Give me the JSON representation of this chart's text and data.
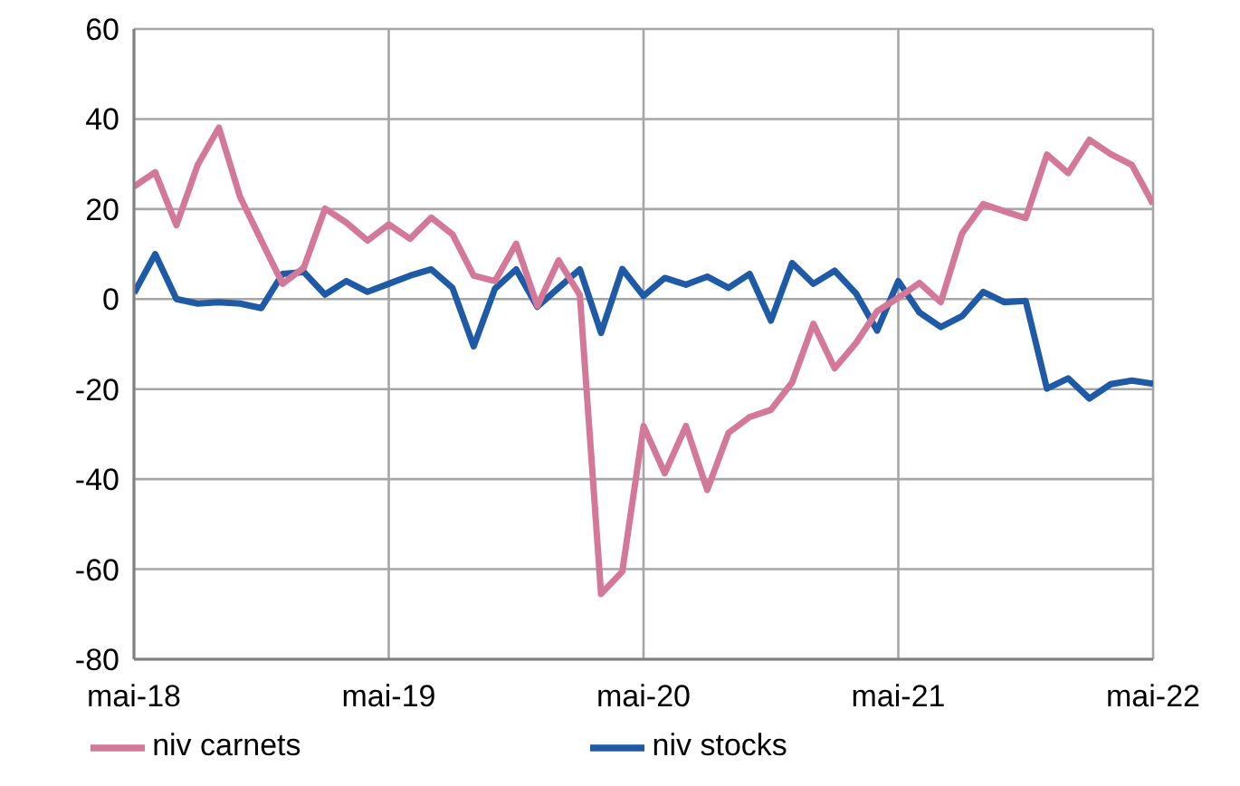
{
  "chart_data": {
    "type": "line",
    "categories": [
      "mai-18",
      null,
      null,
      null,
      null,
      null,
      null,
      null,
      null,
      null,
      null,
      null,
      "mai-19",
      null,
      null,
      null,
      null,
      null,
      null,
      null,
      null,
      null,
      null,
      null,
      "mai-20",
      null,
      null,
      null,
      null,
      null,
      null,
      null,
      null,
      null,
      null,
      null,
      "mai-21",
      null,
      null,
      null,
      null,
      null,
      null,
      null,
      null,
      null,
      null,
      null,
      "mai-22"
    ],
    "series": [
      {
        "name": "niv stocks",
        "color": "#1f5aa6",
        "values": [
          1.3,
          10,
          0,
          -1,
          -0.7,
          -1,
          -2,
          5.6,
          6,
          1,
          4,
          1.6,
          3.4,
          5.2,
          6.6,
          2.5,
          -10.5,
          2.3,
          6.6,
          -1.7,
          2.5,
          6.6,
          -7.5,
          6.7,
          0.7,
          4.7,
          3.2,
          5,
          2.5,
          5.6,
          -4.8,
          8,
          3.4,
          6.3,
          1.3,
          -7,
          4,
          -3,
          -6.2,
          -3.8,
          1.6,
          -0.7,
          -0.4,
          -19.9,
          -17.6,
          -22.1,
          -18.9,
          -18.1,
          -18.8
        ]
      },
      {
        "name": "niv carnets",
        "color": "#d4789a",
        "values": [
          25,
          28.2,
          16.4,
          29.8,
          38.1,
          22.7,
          13,
          3.4,
          7,
          20.1,
          17,
          13,
          16.6,
          13.4,
          18.1,
          14.4,
          5.2,
          4,
          12.3,
          -1.5,
          8.6,
          0.9,
          -65.5,
          -60.5,
          -28.2,
          -38.7,
          -28.2,
          -42.4,
          -29.7,
          -26.2,
          -24.6,
          -18.5,
          -5.5,
          -15.4,
          -9.8,
          -2.7,
          0.3,
          3.6,
          -0.7,
          14.6,
          21.1,
          19.5,
          18,
          32.1,
          28,
          35.4,
          32.2,
          29.8,
          21.1
        ]
      }
    ],
    "ylim": [
      -80,
      60
    ],
    "yticks": [
      -80,
      -60,
      -40,
      -20,
      0,
      20,
      40,
      60
    ],
    "grid": true,
    "legend": "bottom",
    "marker": "none",
    "line_style": "solid"
  }
}
